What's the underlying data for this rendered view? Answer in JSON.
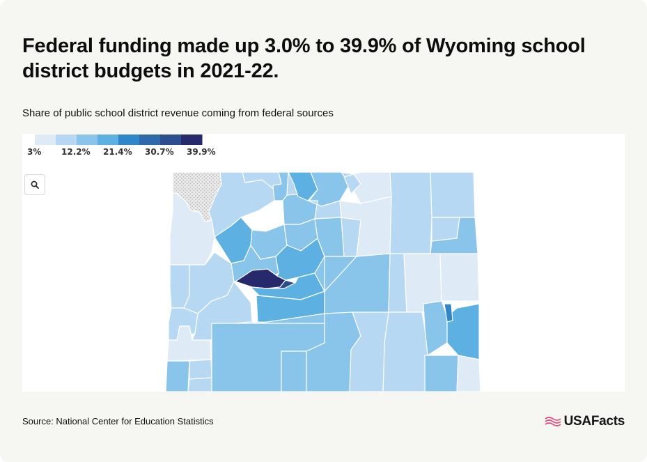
{
  "header": {
    "title": "Federal funding made up 3.0% to 39.9% of Wyoming school district budgets in 2021-22.",
    "subtitle": "Share of public school district revenue coming from federal sources"
  },
  "legend": {
    "labels": [
      "3%",
      "12.2%",
      "21.4%",
      "30.7%",
      "39.9%"
    ],
    "colors": [
      "#deebf7",
      "#b7d8f2",
      "#89c4ea",
      "#5cb1e2",
      "#2f86c8",
      "#2c6aab",
      "#2c4d8f",
      "#26296b"
    ]
  },
  "map": {
    "state": "Wyoming",
    "no_data_color": "#d9d9d9",
    "zoom_icon": "search-icon"
  },
  "footer": {
    "source": "Source: National Center for Education Statistics",
    "logo_text": "USAFacts",
    "logo_icon": "usafacts-flag-icon"
  }
}
